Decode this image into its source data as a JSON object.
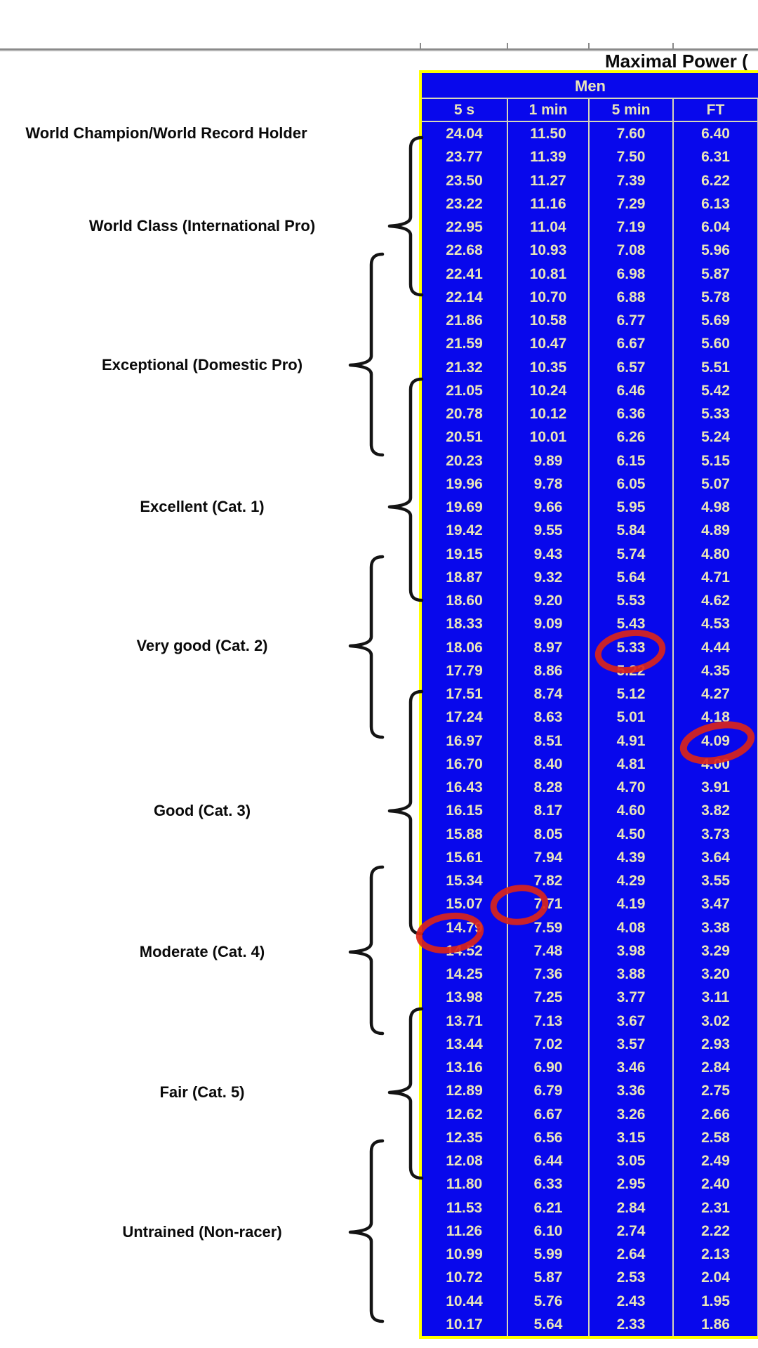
{
  "title": "Maximal Power (",
  "chart_data": {
    "type": "table",
    "title": "Maximal Power (",
    "group_header": "Men",
    "columns": [
      "5 s",
      "1 min",
      "5 min",
      "FT"
    ],
    "rows": [
      [
        "24.04",
        "11.50",
        "7.60",
        "6.40"
      ],
      [
        "23.77",
        "11.39",
        "7.50",
        "6.31"
      ],
      [
        "23.50",
        "11.27",
        "7.39",
        "6.22"
      ],
      [
        "23.22",
        "11.16",
        "7.29",
        "6.13"
      ],
      [
        "22.95",
        "11.04",
        "7.19",
        "6.04"
      ],
      [
        "22.68",
        "10.93",
        "7.08",
        "5.96"
      ],
      [
        "22.41",
        "10.81",
        "6.98",
        "5.87"
      ],
      [
        "22.14",
        "10.70",
        "6.88",
        "5.78"
      ],
      [
        "21.86",
        "10.58",
        "6.77",
        "5.69"
      ],
      [
        "21.59",
        "10.47",
        "6.67",
        "5.60"
      ],
      [
        "21.32",
        "10.35",
        "6.57",
        "5.51"
      ],
      [
        "21.05",
        "10.24",
        "6.46",
        "5.42"
      ],
      [
        "20.78",
        "10.12",
        "6.36",
        "5.33"
      ],
      [
        "20.51",
        "10.01",
        "6.26",
        "5.24"
      ],
      [
        "20.23",
        "9.89",
        "6.15",
        "5.15"
      ],
      [
        "19.96",
        "9.78",
        "6.05",
        "5.07"
      ],
      [
        "19.69",
        "9.66",
        "5.95",
        "4.98"
      ],
      [
        "19.42",
        "9.55",
        "5.84",
        "4.89"
      ],
      [
        "19.15",
        "9.43",
        "5.74",
        "4.80"
      ],
      [
        "18.87",
        "9.32",
        "5.64",
        "4.71"
      ],
      [
        "18.60",
        "9.20",
        "5.53",
        "4.62"
      ],
      [
        "18.33",
        "9.09",
        "5.43",
        "4.53"
      ],
      [
        "18.06",
        "8.97",
        "5.33",
        "4.44"
      ],
      [
        "17.79",
        "8.86",
        "5.22",
        "4.35"
      ],
      [
        "17.51",
        "8.74",
        "5.12",
        "4.27"
      ],
      [
        "17.24",
        "8.63",
        "5.01",
        "4.18"
      ],
      [
        "16.97",
        "8.51",
        "4.91",
        "4.09"
      ],
      [
        "16.70",
        "8.40",
        "4.81",
        "4.00"
      ],
      [
        "16.43",
        "8.28",
        "4.70",
        "3.91"
      ],
      [
        "16.15",
        "8.17",
        "4.60",
        "3.82"
      ],
      [
        "15.88",
        "8.05",
        "4.50",
        "3.73"
      ],
      [
        "15.61",
        "7.94",
        "4.39",
        "3.64"
      ],
      [
        "15.34",
        "7.82",
        "4.29",
        "3.55"
      ],
      [
        "15.07",
        "7.71",
        "4.19",
        "3.47"
      ],
      [
        "14.79",
        "7.59",
        "4.08",
        "3.38"
      ],
      [
        "14.52",
        "7.48",
        "3.98",
        "3.29"
      ],
      [
        "14.25",
        "7.36",
        "3.88",
        "3.20"
      ],
      [
        "13.98",
        "7.25",
        "3.77",
        "3.11"
      ],
      [
        "13.71",
        "7.13",
        "3.67",
        "3.02"
      ],
      [
        "13.44",
        "7.02",
        "3.57",
        "2.93"
      ],
      [
        "13.16",
        "6.90",
        "3.46",
        "2.84"
      ],
      [
        "12.89",
        "6.79",
        "3.36",
        "2.75"
      ],
      [
        "12.62",
        "6.67",
        "3.26",
        "2.66"
      ],
      [
        "12.35",
        "6.56",
        "3.15",
        "2.58"
      ],
      [
        "12.08",
        "6.44",
        "3.05",
        "2.49"
      ],
      [
        "11.80",
        "6.33",
        "2.95",
        "2.40"
      ],
      [
        "11.53",
        "6.21",
        "2.84",
        "2.31"
      ],
      [
        "11.26",
        "6.10",
        "2.74",
        "2.22"
      ],
      [
        "10.99",
        "5.99",
        "2.64",
        "2.13"
      ],
      [
        "10.72",
        "5.87",
        "2.53",
        "2.04"
      ],
      [
        "10.44",
        "5.76",
        "2.43",
        "1.95"
      ],
      [
        "10.17",
        "5.64",
        "2.33",
        "1.86"
      ]
    ],
    "categories": [
      "World Champion/World Record Holder",
      "World Class (International Pro)",
      "Exceptional (Domestic Pro)",
      "Excellent (Cat. 1)",
      "Very good (Cat. 2)",
      "Good (Cat. 3)",
      "Moderate (Cat. 4)",
      "Fair (Cat. 5)",
      "Untrained (Non-racer)"
    ]
  },
  "annotations": {
    "circled_values": [
      {
        "row": 23,
        "column": "5 min",
        "value": "5.33"
      },
      {
        "row": 27,
        "column": "FT",
        "value": "4.09"
      },
      {
        "row": 34,
        "column": "1 min",
        "value": "7.71"
      },
      {
        "row": 35,
        "column": "5 s",
        "value": "14.79"
      }
    ]
  },
  "colors": {
    "table_background": "#0808ec",
    "table_border": "#ffff00",
    "cell_text": "#e9e5ba",
    "grid_divider": "#d6d6b8",
    "annotation_red": "#da251a",
    "top_rule_gray": "#8a8a8a",
    "label_text": "#0a0a0a"
  }
}
